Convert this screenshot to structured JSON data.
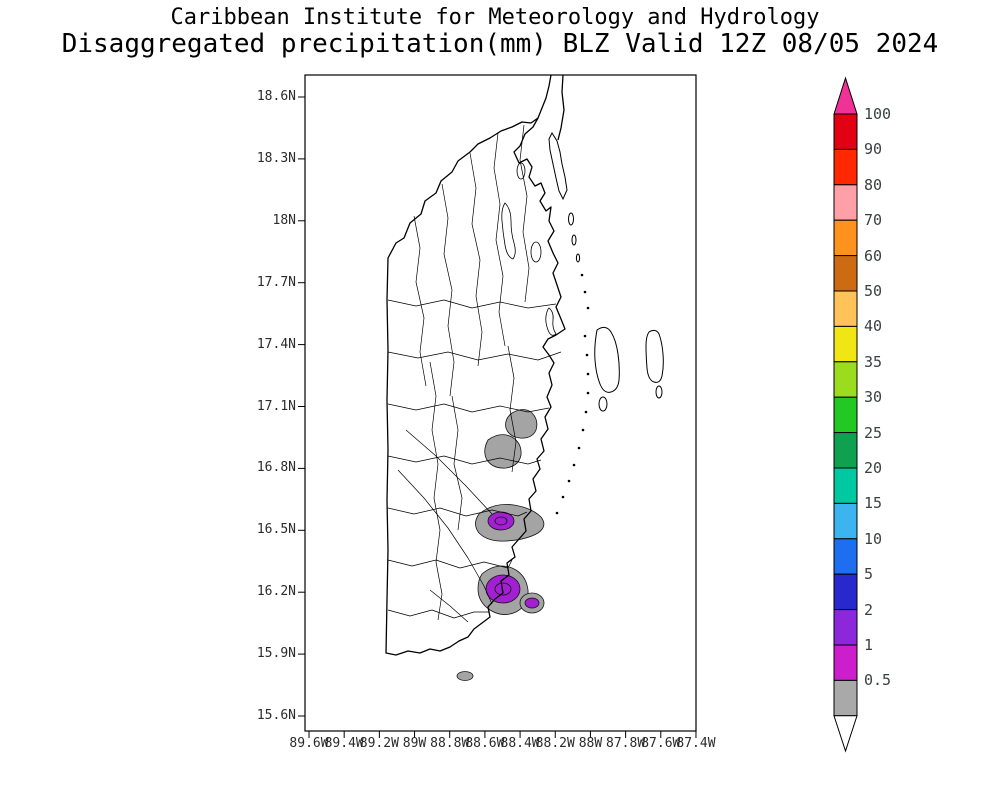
{
  "header": {
    "line1": "Caribbean Institute for Meteorology and Hydrology",
    "line2": "Disaggregated precipitation(mm) BLZ Valid 12Z 08/05 2024"
  },
  "axes": {
    "lat_labels": [
      "18.6N",
      "18.3N",
      "18N",
      "17.7N",
      "17.4N",
      "17.1N",
      "16.8N",
      "16.5N",
      "16.2N",
      "15.9N",
      "15.6N"
    ],
    "lon_labels": [
      "89.6W",
      "89.4W",
      "89.2W",
      "89W",
      "88.8W",
      "88.6W",
      "88.4W",
      "88.2W",
      "88W",
      "87.8W",
      "87.6W",
      "87.4W"
    ]
  },
  "colorbar": {
    "levels": [
      "100",
      "90",
      "80",
      "70",
      "60",
      "50",
      "40",
      "35",
      "30",
      "25",
      "20",
      "15",
      "10",
      "5",
      "2",
      "1",
      "0.5"
    ],
    "cell_colors": [
      "#e10014",
      "#ff2800",
      "#ffa0a8",
      "#ff911e",
      "#cd6a14",
      "#ffc35a",
      "#f0e614",
      "#9bdc1e",
      "#23c823",
      "#0fa050",
      "#00c8a0",
      "#3cb4f0",
      "#1e6ef0",
      "#2828cd",
      "#8c28dc",
      "#cd1ecd",
      "#a9a9a9"
    ],
    "arrow_top_color": "#f03296",
    "arrow_bottom_color": "#ffffff"
  },
  "map": {
    "region": "BLZ",
    "outline_color": "#000000",
    "precip_colors": {
      "gray": "#a4a4a4",
      "purple": "#a21fd2",
      "magenta": "#c41fc4"
    },
    "precip_features": [
      {
        "band": "trace (<0.5 mm)",
        "color": "gray",
        "location": "two small patches inland near 17.0N and fringes around southern cores"
      },
      {
        "band": "1-2 mm",
        "color": "purple",
        "location": "cores near the coast around 16.5N and 16.2N, small spot at 15.8N"
      }
    ]
  }
}
